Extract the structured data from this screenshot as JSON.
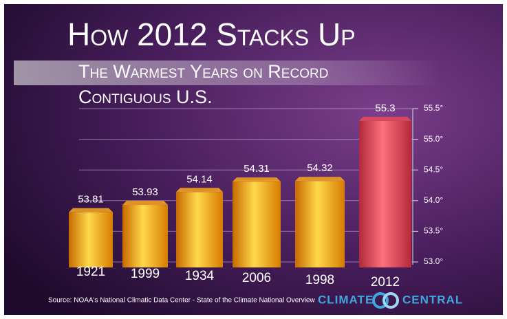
{
  "chart_data": {
    "type": "bar3d",
    "title": "How 2012 Stacks Up",
    "subtitle": "The Warmest Years on Record",
    "region": "Contiguous U.S.",
    "categories": [
      "1921",
      "1999",
      "1934",
      "2006",
      "1998",
      "2012"
    ],
    "values": [
      53.81,
      53.93,
      54.14,
      54.31,
      54.32,
      55.3
    ],
    "colors": [
      "#f0a020",
      "#f0a020",
      "#f0a020",
      "#f0a020",
      "#f0a020",
      "#e04a5a"
    ],
    "ylim": [
      53,
      55.5
    ],
    "yticks": [
      {
        "value": 53,
        "label": "53.0°"
      },
      {
        "value": 53.5,
        "label": "53.5°"
      },
      {
        "value": 54,
        "label": "54.0°"
      },
      {
        "value": 54.5,
        "label": "54.5°"
      },
      {
        "value": 55,
        "label": "55.0°"
      },
      {
        "value": 55.5,
        "label": "55.5°"
      }
    ],
    "grid": true,
    "source": "Source: NOAA's National Climatic Data Center - State of the Climate National Overview",
    "logo_left": "CLIMATE",
    "logo_right": "CENTRAL"
  }
}
